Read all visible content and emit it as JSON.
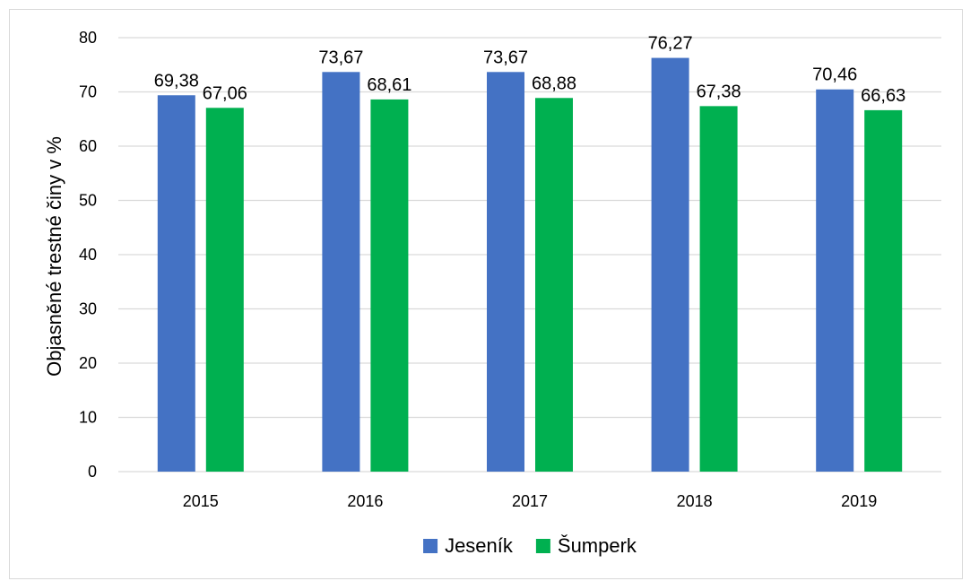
{
  "chart_data": {
    "type": "bar",
    "title": "",
    "xlabel": "",
    "ylabel": "Objasněné trestné činy v %",
    "categories": [
      "2015",
      "2016",
      "2017",
      "2018",
      "2019"
    ],
    "series": [
      {
        "name": "Jeseník",
        "color": "#4472c4",
        "values": [
          69.38,
          73.67,
          73.67,
          76.27,
          70.46
        ],
        "labels": [
          "69,38",
          "73,67",
          "73,67",
          "76,27",
          "70,46"
        ]
      },
      {
        "name": "Šumperk",
        "color": "#00b050",
        "values": [
          67.06,
          68.61,
          68.88,
          67.38,
          66.63
        ],
        "labels": [
          "67,06",
          "68,61",
          "68,88",
          "67,38",
          "66,63"
        ]
      }
    ],
    "ylim": [
      0,
      80
    ],
    "yticks": [
      0,
      10,
      20,
      30,
      40,
      50,
      60,
      70,
      80
    ],
    "grid": true,
    "gridColor": "#d9d9d9",
    "legend": "bottom-center"
  }
}
